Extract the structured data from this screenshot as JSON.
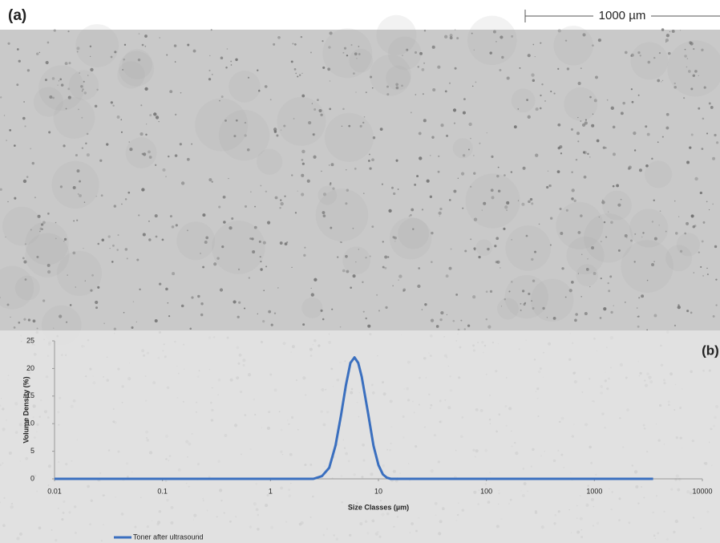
{
  "panel_a": {
    "label": "(a)",
    "scale_bar": "1000 µm"
  },
  "chart_data": {
    "type": "line",
    "panel_label": "(b)",
    "xlabel": "Size Classes (µm)",
    "ylabel": "Volume Density (%)",
    "xscale": "log",
    "xlim": [
      0.01,
      10000
    ],
    "xticks": [
      0.01,
      0.1,
      1,
      10,
      100,
      1000,
      10000
    ],
    "ylim": [
      0,
      25
    ],
    "yticks": [
      0,
      5,
      10,
      15,
      20,
      25
    ],
    "grid": false,
    "legend": "lower left",
    "x": [
      0.01,
      0.1,
      1,
      2.5,
      3.0,
      3.5,
      4.0,
      4.5,
      5.0,
      5.5,
      6.0,
      6.5,
      7.0,
      8.0,
      9.0,
      10,
      11,
      12,
      13,
      100,
      1000,
      3500
    ],
    "series": [
      {
        "name": "Toner after ultrasound",
        "color": "#3a6fbf",
        "values": [
          0,
          0,
          0,
          0,
          0.5,
          2,
          6,
          11.5,
          17,
          21,
          22,
          21,
          18.5,
          12,
          6,
          2.5,
          0.8,
          0.2,
          0,
          0,
          0,
          0
        ]
      }
    ]
  }
}
